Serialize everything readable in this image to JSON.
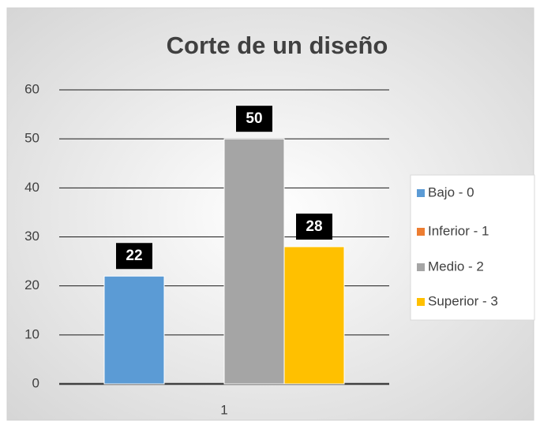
{
  "chart_data": {
    "type": "bar",
    "title": "Corte de un diseño",
    "categories": [
      "1"
    ],
    "series": [
      {
        "name": "Bajo - 0",
        "color": "#5b9bd5",
        "values": [
          22
        ],
        "data_labels": true
      },
      {
        "name": "Inferior - 1",
        "color": "#ed7d31",
        "values": [
          0
        ],
        "data_labels": false
      },
      {
        "name": "Medio - 2",
        "color": "#a5a5a5",
        "values": [
          50
        ],
        "data_labels": true
      },
      {
        "name": "Superior - 3",
        "color": "#ffc000",
        "values": [
          28
        ],
        "data_labels": true
      }
    ],
    "ylim": [
      0,
      60
    ],
    "yticks": [
      0,
      10,
      20,
      30,
      40,
      50,
      60
    ],
    "grid": true,
    "legend": "right"
  }
}
